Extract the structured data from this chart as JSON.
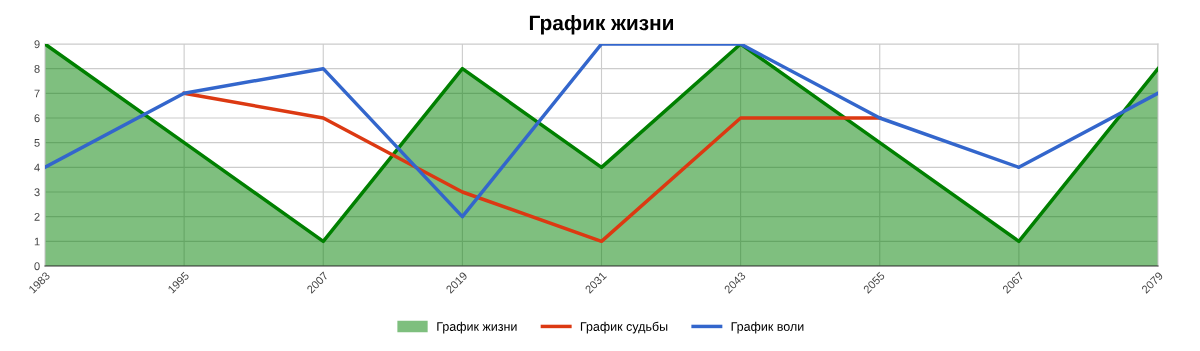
{
  "chart_data": {
    "type": "line",
    "title": "График жизни",
    "categories": [
      "1983",
      "1995",
      "2007",
      "2019",
      "2031",
      "2043",
      "2055",
      "2067",
      "2079"
    ],
    "series": [
      {
        "name": "График жизни",
        "type": "area",
        "color": "#008000",
        "values": [
          9,
          5,
          1,
          8,
          4,
          9,
          5,
          1,
          8
        ]
      },
      {
        "name": "График судьбы",
        "color": "#dc3912",
        "values": [
          null,
          7,
          6,
          3,
          1,
          6,
          6,
          null,
          null
        ]
      },
      {
        "name": "График воли",
        "color": "#3366cc",
        "values": [
          4,
          7,
          8,
          2,
          9,
          9,
          6,
          4,
          7
        ]
      }
    ],
    "ylim": [
      0,
      9
    ],
    "yticks": [
      0,
      1,
      2,
      3,
      4,
      5,
      6,
      7,
      8,
      9
    ],
    "grid": true,
    "legend": "bottom",
    "marker": "none",
    "line_style": "solid"
  }
}
